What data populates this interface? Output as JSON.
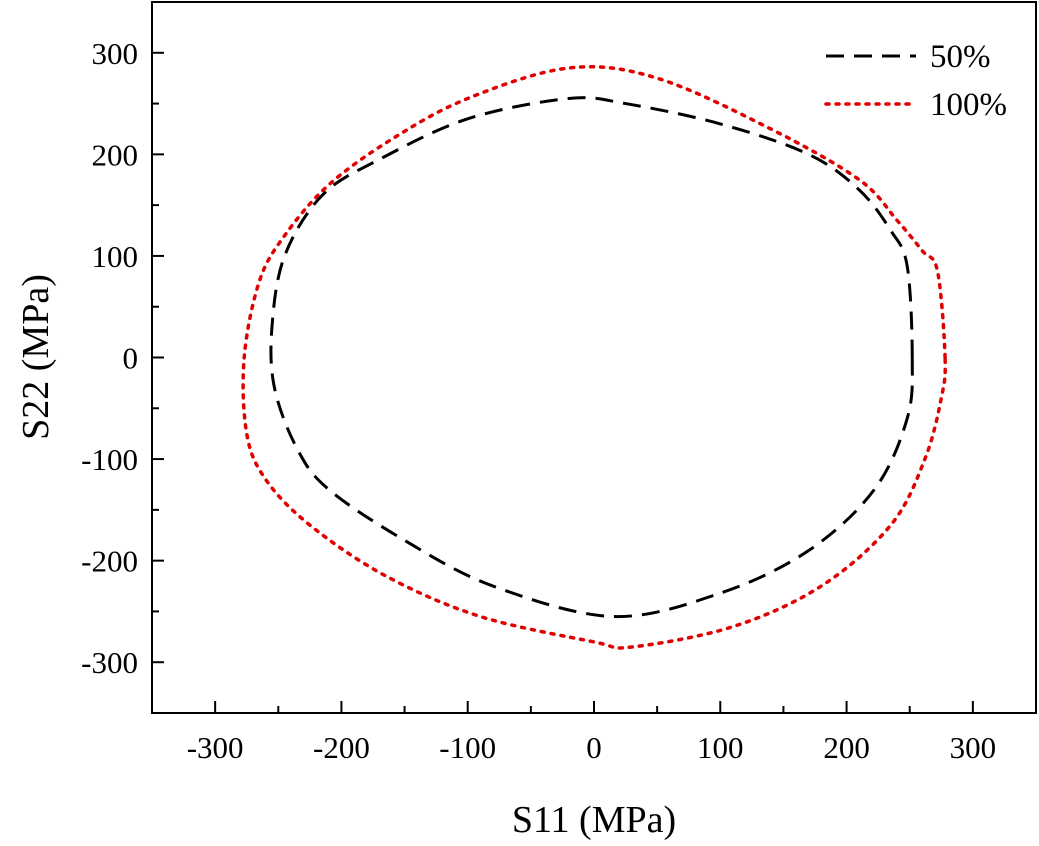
{
  "chart_data": {
    "type": "line",
    "title": "",
    "xlabel": "S11 (MPa)",
    "ylabel": "S22 (MPa)",
    "xlim": [
      -350,
      350
    ],
    "ylim": [
      -350,
      350
    ],
    "xticks": [
      -300,
      -200,
      -100,
      0,
      100,
      200,
      300
    ],
    "yticks": [
      -300,
      -200,
      -100,
      0,
      100,
      200,
      300
    ],
    "xtick_labels": [
      "-300",
      "-200",
      "-100",
      "0",
      "100",
      "200",
      "300"
    ],
    "ytick_labels": [
      "-300",
      "-200",
      "-100",
      "0",
      "100",
      "200",
      "300"
    ],
    "grid": false,
    "legend_position": "top-right",
    "series": [
      {
        "name": "50%",
        "color": "#000000",
        "style": "dashed",
        "x": [
          252,
          248,
          235,
          210,
          170,
          100,
          25,
          -20,
          -100,
          -170,
          -215,
          -245,
          -255,
          -253,
          -235,
          -210,
          -150,
          -80,
          15,
          100,
          170,
          222,
          248,
          252
        ],
        "y": [
          0,
          90,
          125,
          165,
          200,
          230,
          250,
          255,
          235,
          195,
          160,
          100,
          30,
          -30,
          -90,
          -130,
          -180,
          -225,
          -255,
          -232,
          -190,
          -130,
          -60,
          0
        ]
      },
      {
        "name": "100%",
        "color": "#e00000",
        "style": "dotted",
        "x": [
          278,
          272,
          260,
          240,
          210,
          140,
          50,
          -20,
          -100,
          -160,
          -210,
          -245,
          -265,
          -277,
          -275,
          -260,
          -225,
          -165,
          -90,
          0,
          30,
          110,
          180,
          235,
          262,
          275,
          278
        ],
        "y": [
          0,
          85,
          105,
          135,
          175,
          225,
          275,
          285,
          255,
          215,
          170,
          120,
          75,
          0,
          -75,
          -120,
          -165,
          -215,
          -255,
          -280,
          -285,
          -265,
          -225,
          -165,
          -100,
          -40,
          0
        ]
      }
    ]
  }
}
